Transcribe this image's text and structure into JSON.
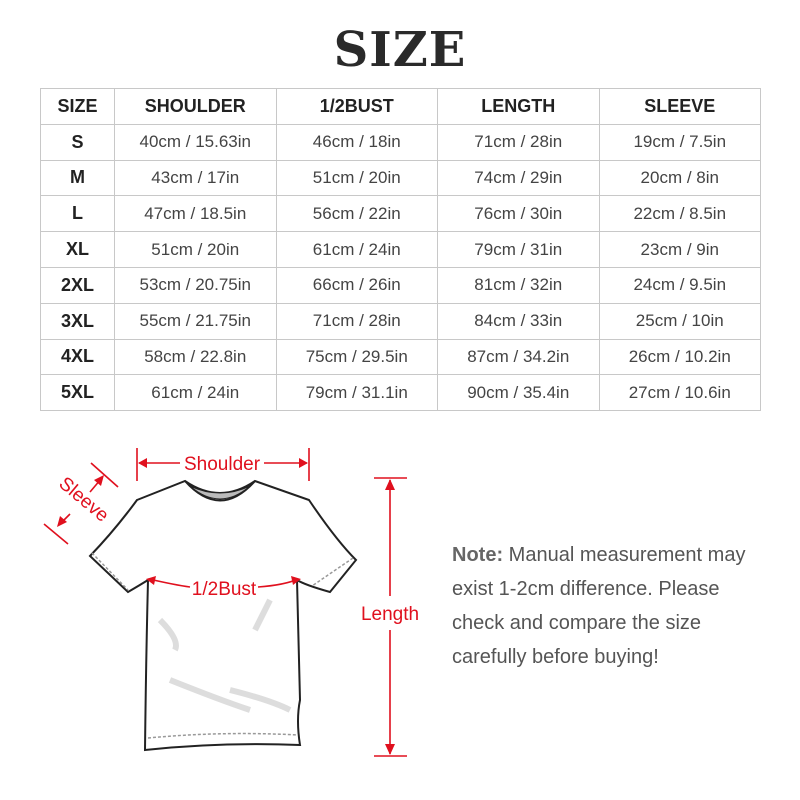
{
  "title": "SIZE",
  "table": {
    "headers": [
      "SIZE",
      "SHOULDER",
      "1/2BUST",
      "LENGTH",
      "SLEEVE"
    ],
    "rows": [
      [
        "S",
        "40cm / 15.63in",
        "46cm / 18in",
        "71cm / 28in",
        "19cm / 7.5in"
      ],
      [
        "M",
        "43cm / 17in",
        "51cm / 20in",
        "74cm / 29in",
        "20cm / 8in"
      ],
      [
        "L",
        "47cm / 18.5in",
        "56cm / 22in",
        "76cm / 30in",
        "22cm / 8.5in"
      ],
      [
        "XL",
        "51cm / 20in",
        "61cm / 24in",
        "79cm / 31in",
        "23cm / 9in"
      ],
      [
        "2XL",
        "53cm / 20.75in",
        "66cm / 26in",
        "81cm / 32in",
        "24cm / 9.5in"
      ],
      [
        "3XL",
        "55cm / 21.75in",
        "71cm / 28in",
        "84cm / 33in",
        "25cm / 10in"
      ],
      [
        "4XL",
        "58cm / 22.8in",
        "75cm / 29.5in",
        "87cm / 34.2in",
        "26cm / 10.2in"
      ],
      [
        "5XL",
        "61cm / 24in",
        "79cm / 31.1in",
        "90cm / 35.4in",
        "27cm / 10.6in"
      ]
    ]
  },
  "diagram": {
    "shoulder_label": "Shoulder",
    "sleeve_label": "Sleeve",
    "bust_label": "1/2Bust",
    "length_label": "Length",
    "accent_color": "#e0101e"
  },
  "note": {
    "label": "Note:",
    "text": "Manual measurement may exist 1-2cm difference. Please check and compare the size carefully before buying!"
  }
}
